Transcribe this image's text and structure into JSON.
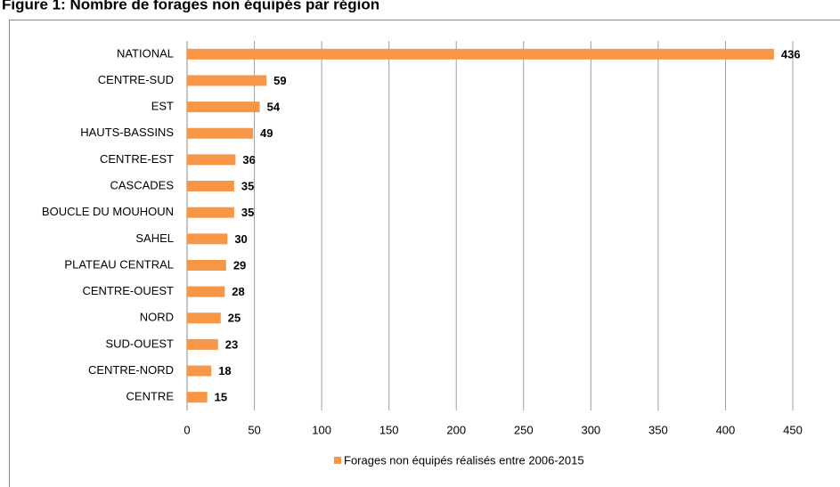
{
  "chart_data": {
    "type": "bar",
    "orientation": "horizontal",
    "title": "Figure 1: Nombre de forages non équipés par région",
    "categories": [
      "NATIONAL",
      "CENTRE-SUD",
      "EST",
      "HAUTS-BASSINS",
      "CENTRE-EST",
      "CASCADES",
      "BOUCLE DU MOUHOUN",
      "SAHEL",
      "PLATEAU CENTRAL",
      "CENTRE-OUEST",
      "NORD",
      "SUD-OUEST",
      "CENTRE-NORD",
      "CENTRE"
    ],
    "series": [
      {
        "name": "Forages non équipés réalisés entre 2006-2015",
        "color": "#f79646",
        "values": [
          436,
          59,
          54,
          49,
          36,
          35,
          35,
          30,
          29,
          28,
          25,
          23,
          18,
          15
        ]
      }
    ],
    "xlim": [
      0,
      450
    ],
    "xticks": [
      0,
      50,
      100,
      150,
      200,
      250,
      300,
      350,
      400,
      450
    ],
    "grid": true,
    "legend": "bottom"
  }
}
